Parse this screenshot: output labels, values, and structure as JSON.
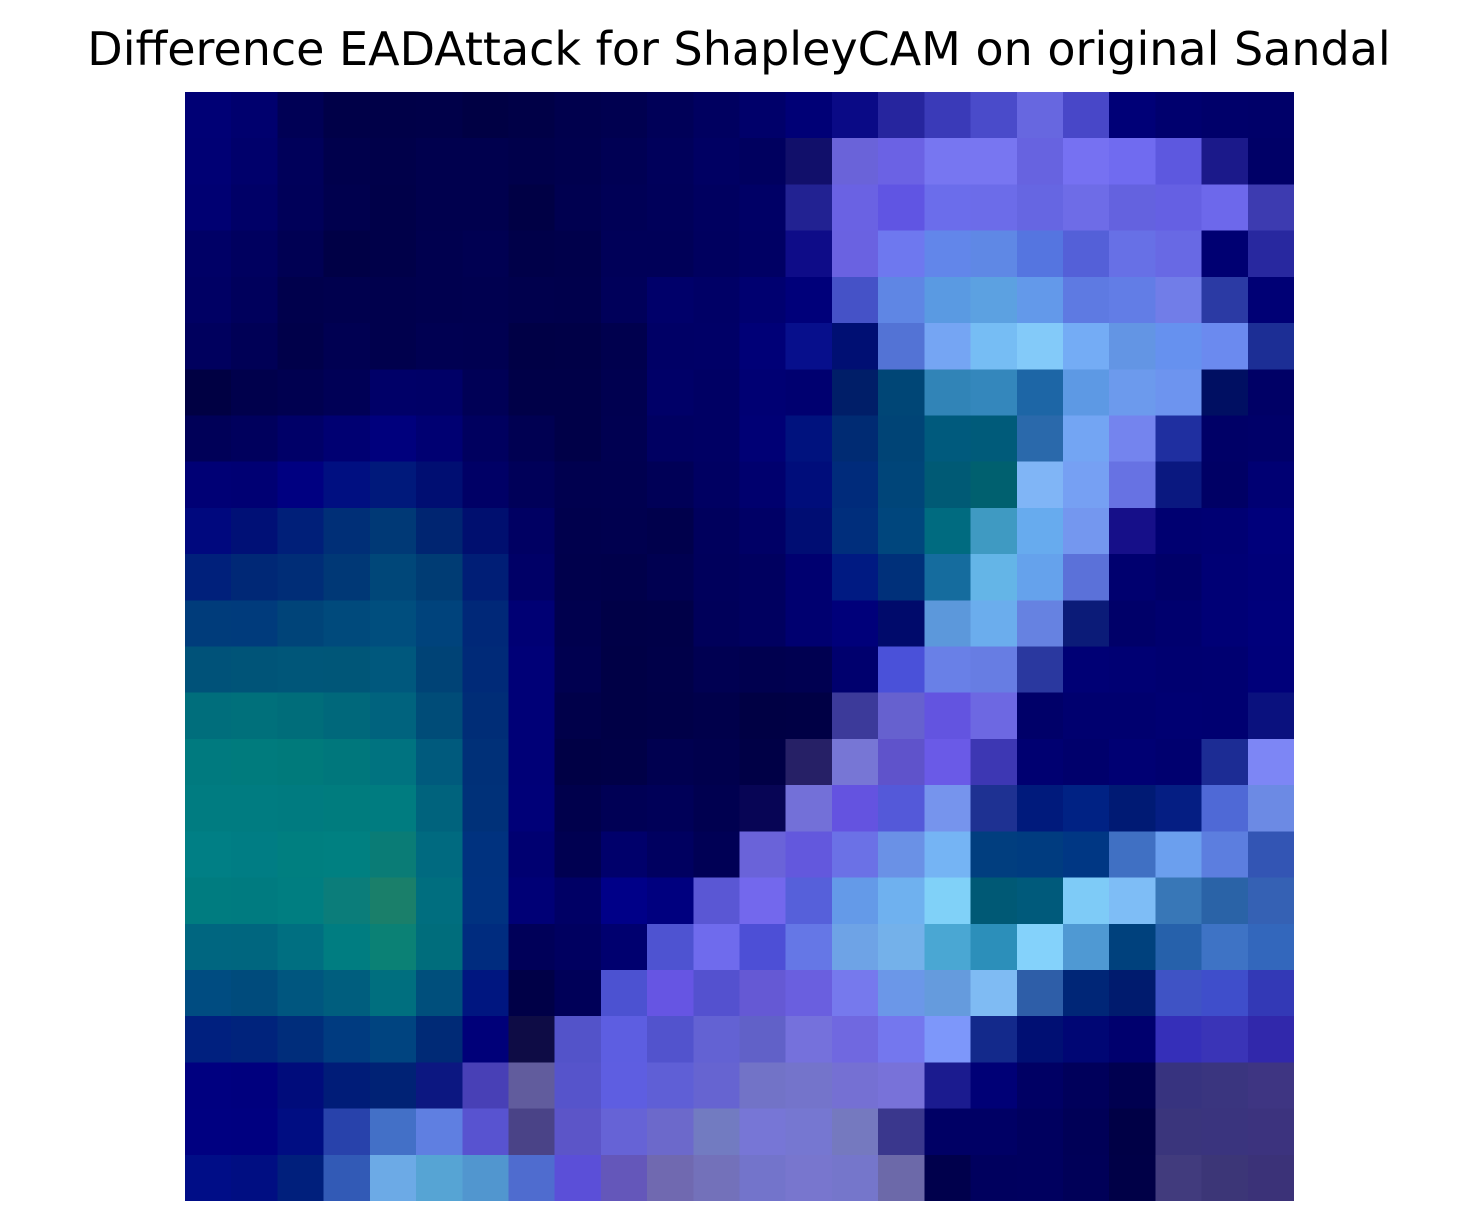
{
  "title": "Difference EADAttack for ShapleyCAM on original Sandal",
  "image": {
    "grid_rows": 24,
    "grid_cols": 24,
    "pixels": [
      [
        "#000075",
        "#00006e",
        "#000055",
        "#000048",
        "#000048",
        "#000049",
        "#000044",
        "#000047",
        "#00004d",
        "#000050",
        "#000058",
        "#000060",
        "#00006a",
        "#000076",
        "#0a0a86",
        "#26259e",
        "#3a3ab8",
        "#4a4bca",
        "#6767e0",
        "#4847c8",
        "#000077",
        "#00006e",
        "#00006a",
        "#000069"
      ],
      [
        "#000074",
        "#00006b",
        "#00005a",
        "#00004c",
        "#00004a",
        "#00004e",
        "#00004e",
        "#00004b",
        "#00004e",
        "#000054",
        "#00005b",
        "#000063",
        "#00005f",
        "#110f6a",
        "#6a63d9",
        "#6b62e4",
        "#7776f1",
        "#7876f1",
        "#6763e0",
        "#7671f2",
        "#706bf0",
        "#5d58df",
        "#1b198a",
        "#000067"
      ],
      [
        "#000072",
        "#000067",
        "#000059",
        "#00004e",
        "#000049",
        "#00004e",
        "#00004e",
        "#000045",
        "#000050",
        "#000056",
        "#00005a",
        "#000060",
        "#000066",
        "#222292",
        "#6a62e3",
        "#6055e3",
        "#6b6deb",
        "#6c6ce9",
        "#6666e2",
        "#6e6ce7",
        "#6462df",
        "#6560e3",
        "#6d68eb",
        "#3d3bb0"
      ],
      [
        "#000066",
        "#00005f",
        "#000053",
        "#000046",
        "#000049",
        "#00004f",
        "#000052",
        "#000049",
        "#00004b",
        "#000058",
        "#000058",
        "#00005f",
        "#000064",
        "#0e0c88",
        "#6a62e1",
        "#6e78ef",
        "#6286ea",
        "#5f88e5",
        "#5575e0",
        "#5460d8",
        "#6770e6",
        "#6869e4",
        "#000072",
        "#28289f"
      ],
      [
        "#000064",
        "#00005c",
        "#00004c",
        "#00004e",
        "#00004d",
        "#00004f",
        "#000050",
        "#00004d",
        "#00004c",
        "#00005a",
        "#00006a",
        "#000066",
        "#000070",
        "#00007a",
        "#4552c7",
        "#5f86e4",
        "#5a9ae2",
        "#5ca1e1",
        "#6399ea",
        "#5e7ae2",
        "#627de6",
        "#717de8",
        "#2b3aa4",
        "#000075"
      ],
      [
        "#00005e",
        "#000056",
        "#00004a",
        "#000052",
        "#00004d",
        "#000052",
        "#000051",
        "#000046",
        "#000047",
        "#00004e",
        "#000066",
        "#000067",
        "#000077",
        "#070f8c",
        "#000f73",
        "#5373d5",
        "#75a5f3",
        "#76bdf4",
        "#83caf9",
        "#74acf5",
        "#6395e4",
        "#6691ef",
        "#6b8aef",
        "#1c2e95"
      ],
      [
        "#000043",
        "#00004c",
        "#000050",
        "#000056",
        "#000068",
        "#000067",
        "#000056",
        "#000048",
        "#000048",
        "#000050",
        "#000068",
        "#000064",
        "#000073",
        "#000070",
        "#001e68",
        "#004676",
        "#3184b7",
        "#3487bc",
        "#1d66a6",
        "#5d99e4",
        "#6c9aed",
        "#6d94ef",
        "#000f62",
        "#000066"
      ],
      [
        "#000058",
        "#00005d",
        "#000068",
        "#000072",
        "#00007d",
        "#000072",
        "#00005f",
        "#000052",
        "#000048",
        "#000051",
        "#000062",
        "#000064",
        "#000075",
        "#00127e",
        "#002b73",
        "#004476",
        "#005a7d",
        "#005b7a",
        "#2a69ab",
        "#73a5f3",
        "#7484ee",
        "#1f2fa0",
        "#000067",
        "#000069"
      ],
      [
        "#000075",
        "#000073",
        "#000081",
        "#000f81",
        "#00197b",
        "#000e72",
        "#000066",
        "#000059",
        "#00004f",
        "#000050",
        "#000057",
        "#000062",
        "#00006e",
        "#000d7b",
        "#002b7b",
        "#004579",
        "#005a75",
        "#00606f",
        "#80b5f6",
        "#76a0f3",
        "#6772e3",
        "#0a1880",
        "#000065",
        "#000073"
      ],
      [
        "#00087e",
        "#001076",
        "#001f79",
        "#002f77",
        "#003976",
        "#002571",
        "#000f6f",
        "#000063",
        "#00004d",
        "#00004f",
        "#00004c",
        "#00005d",
        "#000066",
        "#000d73",
        "#002e7c",
        "#00467d",
        "#006b80",
        "#3f9ac2",
        "#67abee",
        "#7497ef",
        "#160f89",
        "#000071",
        "#000073",
        "#00007b"
      ],
      [
        "#00207b",
        "#002876",
        "#002d77",
        "#003876",
        "#004779",
        "#003c74",
        "#001e76",
        "#000067",
        "#00004c",
        "#00004b",
        "#000051",
        "#00005c",
        "#000060",
        "#000070",
        "#001a82",
        "#00307a",
        "#156c9e",
        "#64b5e7",
        "#65a2ec",
        "#5b71d9",
        "#00006f",
        "#000069",
        "#000075",
        "#000079"
      ],
      [
        "#003c7b",
        "#003b7c",
        "#004479",
        "#004a7c",
        "#004e7e",
        "#00437c",
        "#002878",
        "#000074",
        "#00004e",
        "#000047",
        "#000048",
        "#00005a",
        "#000060",
        "#000070",
        "#00007a",
        "#000a6b",
        "#5c98db",
        "#6baded",
        "#6682e1",
        "#0b1b78",
        "#000069",
        "#00006e",
        "#000076",
        "#00007b"
      ],
      [
        "#005279",
        "#005478",
        "#005679",
        "#005678",
        "#00587d",
        "#004376",
        "#002a78",
        "#000077",
        "#000050",
        "#000046",
        "#000049",
        "#000052",
        "#00004f",
        "#000051",
        "#00006e",
        "#4a51d9",
        "#6980e7",
        "#677de3",
        "#2a389f",
        "#000075",
        "#000073",
        "#000070",
        "#000071",
        "#00007a"
      ],
      [
        "#006e7c",
        "#00707b",
        "#006d7a",
        "#00687b",
        "#00637e",
        "#004c78",
        "#002d77",
        "#000077",
        "#00004a",
        "#000046",
        "#000048",
        "#00004b",
        "#000044",
        "#000045",
        "#3c3a9a",
        "#6661cf",
        "#6354e0",
        "#6d68e2",
        "#000069",
        "#00006f",
        "#00006f",
        "#000072",
        "#000071",
        "#0a117e"
      ],
      [
        "#007a7f",
        "#007b7d",
        "#007a7b",
        "#00777c",
        "#007380",
        "#005a7d",
        "#003078",
        "#000077",
        "#000045",
        "#000047",
        "#000050",
        "#00004d",
        "#000046",
        "#262066",
        "#7776d5",
        "#5f53cb",
        "#6a5ae7",
        "#3d37b3",
        "#000071",
        "#00006c",
        "#000073",
        "#00006f",
        "#1c2c94",
        "#7d86f5"
      ],
      [
        "#007c81",
        "#007c81",
        "#007b80",
        "#007c7e",
        "#007c80",
        "#00637d",
        "#003179",
        "#000078",
        "#00004c",
        "#000055",
        "#000058",
        "#000050",
        "#070555",
        "#7370d8",
        "#6453e0",
        "#5459d9",
        "#7694ed",
        "#1e3192",
        "#001a7c",
        "#002284",
        "#001a74",
        "#051e83",
        "#4f69d6",
        "#6c8ae4"
      ],
      [
        "#007f85",
        "#007d84",
        "#007f80",
        "#008081",
        "#0a7c76",
        "#006a80",
        "#00327f",
        "#000071",
        "#000051",
        "#00006b",
        "#000060",
        "#000055",
        "#6a63d9",
        "#6358dd",
        "#6b71e6",
        "#6a91e6",
        "#75b4f4",
        "#013e7f",
        "#003c80",
        "#003784",
        "#4070c3",
        "#6b9fee",
        "#5c7edf",
        "#3355b4"
      ],
      [
        "#007c80",
        "#007b80",
        "#007e81",
        "#0b7d7a",
        "#1a7f6a",
        "#006e7f",
        "#003280",
        "#000076",
        "#000065",
        "#000088",
        "#00007f",
        "#5a57d4",
        "#7368ed",
        "#5660da",
        "#649ae8",
        "#6fb1ef",
        "#80d1f8",
        "#005975",
        "#005a7b",
        "#7ecbf7",
        "#7ebdf6",
        "#3877b7",
        "#2a63a7",
        "#3561b4"
      ],
      [
        "#006680",
        "#00667f",
        "#006f81",
        "#007d81",
        "#0b8175",
        "#006d7c",
        "#002c7f",
        "#000059",
        "#000060",
        "#00006f",
        "#4e53d1",
        "#6f6bed",
        "#4d4fd6",
        "#6577e6",
        "#6ea3e6",
        "#74b1ea",
        "#4aa7d3",
        "#2c8fba",
        "#84d2fb",
        "#4f99d3",
        "#00417d",
        "#2661ab",
        "#3e73c5",
        "#3367bc"
      ],
      [
        "#004c81",
        "#004b7c",
        "#00567f",
        "#005e7e",
        "#006f7f",
        "#004f7c",
        "#001680",
        "#000047",
        "#000058",
        "#4c52d1",
        "#6655e3",
        "#5451cf",
        "#6559d4",
        "#6a5fdf",
        "#7679ed",
        "#6b97e8",
        "#659bdd",
        "#7fbbf3",
        "#2e5ea8",
        "#002677",
        "#001b6e",
        "#3f53c5",
        "#3f4ecb",
        "#3339b6"
      ],
      [
        "#00207f",
        "#00237c",
        "#002d7b",
        "#003b80",
        "#004480",
        "#002a76",
        "#000079",
        "#0e0c45",
        "#5353c9",
        "#5d5ee1",
        "#5253cd",
        "#6362d3",
        "#6161c8",
        "#7571dc",
        "#7068e0",
        "#7477ee",
        "#7d97fa",
        "#13298b",
        "#000f73",
        "#000674",
        "#00006e",
        "#352fb9",
        "#3a34b7",
        "#3128ab"
      ],
      [
        "#000080",
        "#00007e",
        "#000c7b",
        "#001c78",
        "#002275",
        "#0c1781",
        "#4840b6",
        "#615c9d",
        "#5654cb",
        "#5e5ee1",
        "#5f5fd6",
        "#6664d1",
        "#7273c7",
        "#7474cb",
        "#7570d3",
        "#7872d9",
        "#1b1b8f",
        "#000076",
        "#000064",
        "#00005b",
        "#000050",
        "#37337f",
        "#3a357f",
        "#3e3582"
      ],
      [
        "#000081",
        "#000080",
        "#000d82",
        "#2842ab",
        "#4370c7",
        "#5f7fe1",
        "#5853d0",
        "#4a4387",
        "#5c55c8",
        "#6663d6",
        "#6c69cb",
        "#727bc1",
        "#7776d6",
        "#7677d1",
        "#7579bf",
        "#3a378d",
        "#000065",
        "#000065",
        "#00005f",
        "#000057",
        "#000046",
        "#3a357c",
        "#3a347e",
        "#3c337e"
      ],
      [
        "#000d87",
        "#000e82",
        "#001f7c",
        "#325ab6",
        "#6caae6",
        "#56a4d4",
        "#5196cf",
        "#4f6ccf",
        "#5b4fd8",
        "#6457ba",
        "#7069b0",
        "#7371ba",
        "#7374cb",
        "#7876ce",
        "#7576cb",
        "#6c69a9",
        "#00004c",
        "#00005e",
        "#00005f",
        "#000058",
        "#000047",
        "#413b7d",
        "#3c3677",
        "#3b3278"
      ]
    ]
  }
}
